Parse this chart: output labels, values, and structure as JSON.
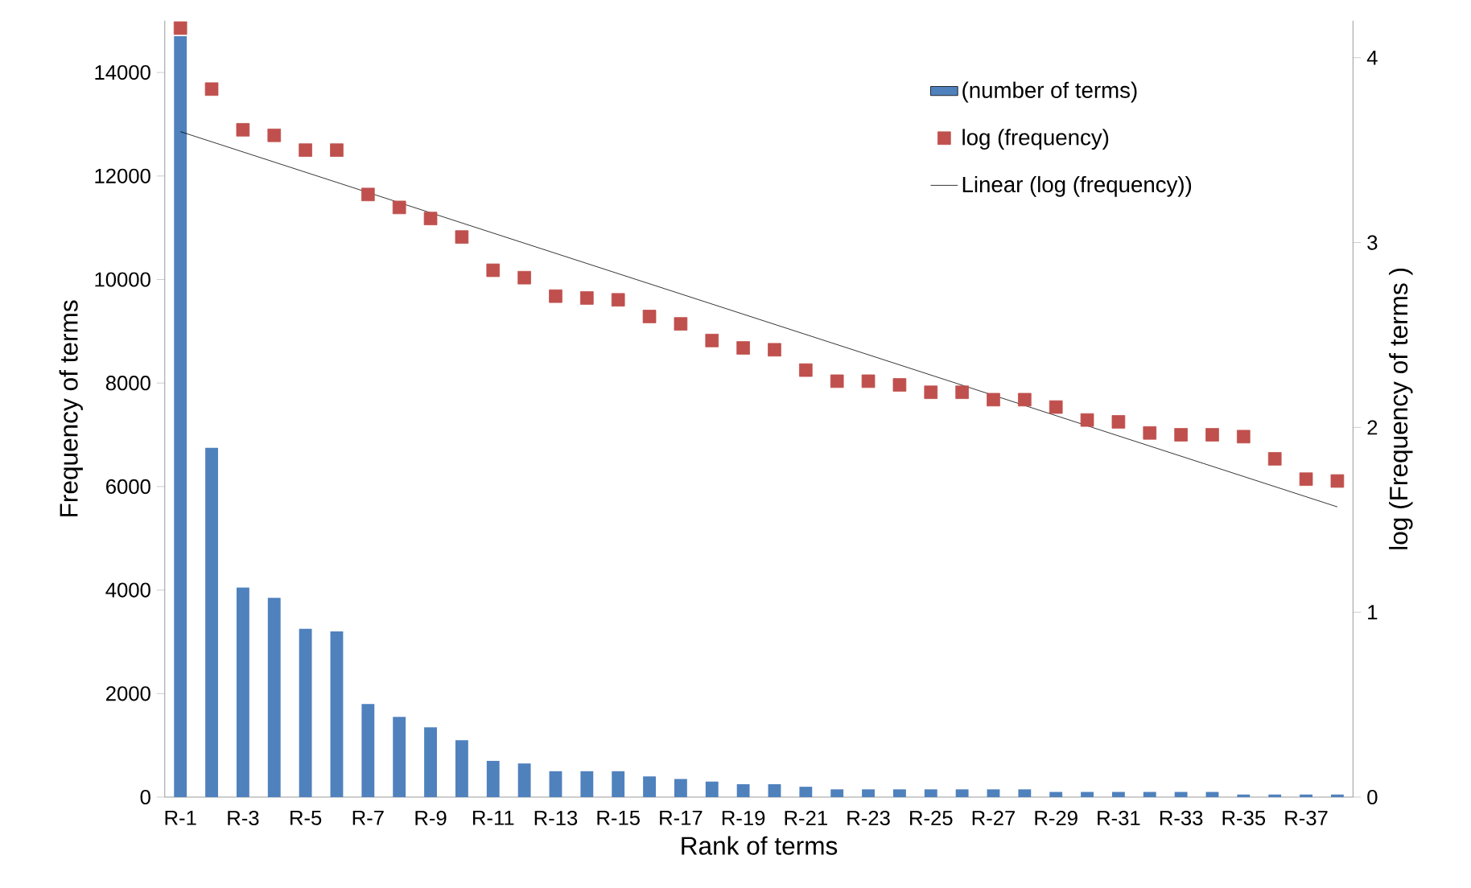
{
  "chart_data": {
    "type": "bar",
    "xlabel": "Rank of terms",
    "ylabel": "Frequency of terms",
    "y2label": "log (Frequency of terms )",
    "categories": [
      "R-1",
      null,
      "R-3",
      null,
      "R-5",
      null,
      "R-7",
      null,
      "R-9",
      null,
      "R-11",
      null,
      "R-13",
      null,
      "R-15",
      null,
      "R-17",
      null,
      "R-19",
      null,
      "R-21",
      null,
      "R-23",
      null,
      "R-25",
      null,
      "R-27",
      null,
      "R-29",
      null,
      "R-31",
      null,
      "R-33",
      null,
      "R-35",
      null,
      "R-37",
      null
    ],
    "ylim": [
      0,
      15000
    ],
    "yticks": [
      0,
      2000,
      4000,
      6000,
      8000,
      10000,
      12000,
      14000
    ],
    "y2lim": [
      0,
      4.2
    ],
    "y2ticks": [
      0,
      1,
      2,
      3,
      4
    ],
    "legend": "top right",
    "series": [
      {
        "name": "(number of terms)",
        "color": "#4f81bd",
        "values": [
          14700,
          6750,
          4050,
          3850,
          3250,
          3200,
          1800,
          1550,
          1350,
          1100,
          700,
          650,
          500,
          500,
          500,
          400,
          350,
          300,
          250,
          250,
          200,
          150,
          150,
          150,
          150,
          150,
          150,
          150,
          100,
          100,
          100,
          100,
          100,
          100,
          50,
          50,
          50,
          50
        ]
      },
      {
        "name": "log (frequency)",
        "type": "scatter",
        "axis": "y2",
        "marker": "square",
        "color": "#c0504d",
        "values": [
          4.16,
          3.83,
          3.61,
          3.58,
          3.5,
          3.5,
          3.26,
          3.19,
          3.13,
          3.03,
          2.85,
          2.81,
          2.71,
          2.7,
          2.69,
          2.6,
          2.56,
          2.47,
          2.43,
          2.42,
          2.31,
          2.25,
          2.25,
          2.23,
          2.19,
          2.19,
          2.15,
          2.15,
          2.11,
          2.04,
          2.03,
          1.97,
          1.96,
          1.96,
          1.95,
          1.83,
          1.72,
          1.71
        ]
      },
      {
        "name": "Linear (log (frequency))",
        "type": "line",
        "axis": "y2",
        "line_style": "solid",
        "color": "#000000",
        "values": [
          3.6,
          null,
          null,
          null,
          null,
          null,
          null,
          null,
          null,
          null,
          null,
          null,
          null,
          null,
          null,
          null,
          null,
          null,
          null,
          null,
          null,
          null,
          null,
          null,
          null,
          null,
          null,
          null,
          null,
          null,
          null,
          null,
          null,
          null,
          null,
          null,
          null,
          1.57
        ]
      }
    ]
  }
}
